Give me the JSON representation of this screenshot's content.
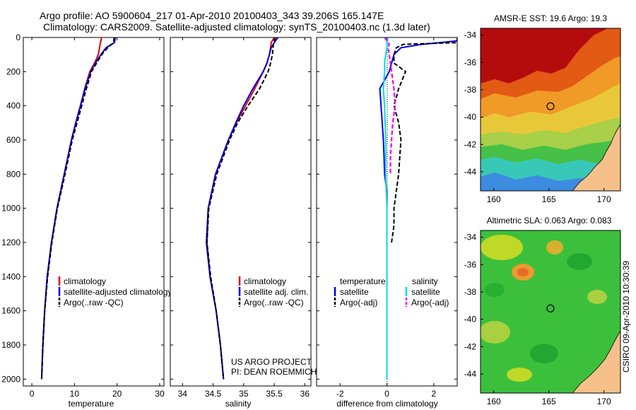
{
  "header": {
    "line1": "Argo profile: AO 5900604_217 01-Apr-2010 20100403_343 39.206S 165.147E",
    "line2": "Climatology: CARS2009. Satellite-adjusted climatology: synTS_20100403.nc (1.3d later)"
  },
  "colors": {
    "climatology": "#dd0000",
    "satellite": "#0000ee",
    "argo": "#000000",
    "sat_diff_sal": "#00dddd",
    "argo_diff_sal": "#ee00ee",
    "land": "#f5c08a"
  },
  "chart_data": [
    {
      "type": "line",
      "id": "temperature",
      "xlabel": "temperature",
      "ylabel": "",
      "xlim": [
        -2,
        31
      ],
      "ylim": [
        2040,
        0
      ],
      "xticks": [
        0,
        10,
        20,
        30
      ],
      "yticks": [
        0,
        200,
        400,
        600,
        800,
        1000,
        1200,
        1400,
        1600,
        1800,
        2000
      ],
      "y": [
        0,
        30,
        60,
        100,
        150,
        200,
        300,
        400,
        500,
        600,
        800,
        1000,
        1200,
        1400,
        1600,
        1800,
        2000
      ],
      "series": [
        {
          "name": "climatology",
          "x": [
            16.4,
            16.1,
            15.9,
            15.6,
            14.7,
            13.6,
            12.4,
            11.4,
            10.3,
            9.3,
            7.6,
            5.9,
            4.6,
            3.6,
            3.0,
            2.6,
            2.3
          ]
        },
        {
          "name": "satellite-adjusted climatology",
          "x": [
            19.6,
            19.4,
            17.4,
            16.2,
            14.9,
            13.8,
            12.5,
            11.4,
            10.3,
            9.3,
            7.6,
            5.9,
            4.6,
            3.6,
            3.0,
            2.6,
            2.3
          ]
        },
        {
          "name": "Argo(..raw -QC)",
          "x": [
            19.3,
            19.2,
            17.8,
            16.4,
            15.2,
            14.0,
            12.8,
            11.7,
            10.6,
            9.5,
            7.8,
            6.0,
            4.7,
            3.7,
            3.0,
            2.6,
            2.3
          ]
        }
      ],
      "legend": [
        "climatology",
        "satellite-adjusted climatology",
        "Argo(..raw -QC)"
      ]
    },
    {
      "type": "line",
      "id": "salinity",
      "xlabel": "salinity",
      "ylabel": "",
      "xlim": [
        33.8,
        36.1
      ],
      "ylim": [
        2040,
        0
      ],
      "xticks": [
        34,
        34.5,
        35,
        35.5,
        36
      ],
      "yticks": [
        0,
        200,
        400,
        600,
        800,
        1000,
        1200,
        1400,
        1600,
        1800,
        2000
      ],
      "y": [
        0,
        30,
        60,
        100,
        150,
        200,
        300,
        400,
        500,
        600,
        800,
        1000,
        1200,
        1400,
        1600,
        1800,
        2000
      ],
      "series": [
        {
          "name": "climatology",
          "x": [
            35.5,
            35.45,
            35.44,
            35.42,
            35.38,
            35.32,
            35.18,
            35.03,
            34.88,
            34.75,
            34.54,
            34.42,
            34.4,
            34.45,
            34.55,
            34.62,
            34.67
          ]
        },
        {
          "name": "satellite adj. clim.",
          "x": [
            35.56,
            35.5,
            35.45,
            35.42,
            35.38,
            35.32,
            35.15,
            35.0,
            34.87,
            34.75,
            34.54,
            34.42,
            34.39,
            34.45,
            34.55,
            34.62,
            34.67
          ]
        },
        {
          "name": "Argo(..raw -QC)",
          "x": [
            35.52,
            35.49,
            35.48,
            35.47,
            35.44,
            35.4,
            35.26,
            35.07,
            34.9,
            34.77,
            34.56,
            34.43,
            34.4,
            34.46,
            34.55,
            34.62,
            34.67
          ]
        }
      ],
      "legend": [
        "climatology",
        "satellite adj. clim.",
        "Argo(..raw -QC)"
      ],
      "annotation": [
        "US ARGO PROJECT",
        "PI: DEAN ROEMMICH"
      ]
    },
    {
      "type": "line",
      "id": "difference",
      "xlabel": "difference from climatology",
      "ylabel": "",
      "xlim": [
        -3,
        3
      ],
      "ylim": [
        2040,
        0
      ],
      "xticks": [
        -2,
        0,
        2
      ],
      "yticks": [
        0,
        200,
        400,
        600,
        800,
        1000,
        1200,
        1400,
        1600,
        1800,
        2000
      ],
      "legend_titles": [
        "temperature",
        "salinity"
      ],
      "series": [
        {
          "name": "satellite",
          "group": "temperature",
          "y": [
            0,
            20,
            40,
            60,
            100,
            150,
            200,
            300,
            400,
            500,
            600,
            700,
            800,
            900,
            1000,
            1200,
            1400,
            1600,
            1800,
            2000
          ],
          "x": [
            3.0,
            3.0,
            1.5,
            0.6,
            0.3,
            0.2,
            0.1,
            -0.3,
            -0.25,
            -0.2,
            -0.15,
            -0.12,
            -0.1,
            0.0,
            0.0,
            0.0,
            0.0,
            0.0,
            0.0,
            0.0
          ]
        },
        {
          "name": "Argo(-adj)",
          "group": "temperature",
          "y": [
            0,
            30,
            40,
            60,
            100,
            150,
            200,
            300,
            400,
            500,
            600,
            700,
            800,
            900,
            1000,
            1100,
            1200
          ],
          "x": [
            3.0,
            3.0,
            0.7,
            0.4,
            0.3,
            0.3,
            0.8,
            0.5,
            0.3,
            0.5,
            0.6,
            0.55,
            0.5,
            0.4,
            0.3,
            0.3,
            0.2
          ]
        },
        {
          "name": "satellite",
          "group": "salinity",
          "y": [
            0,
            30,
            60,
            100,
            150,
            200,
            300,
            400,
            600,
            800,
            1000,
            1200,
            1400,
            1600,
            1800,
            2000
          ],
          "x": [
            0.05,
            0.0,
            0.0,
            -0.05,
            -0.1,
            -0.1,
            -0.15,
            -0.1,
            -0.05,
            -0.05,
            0.0,
            0.0,
            0.0,
            0.0,
            0.0,
            0.0
          ]
        },
        {
          "name": "Argo(-adj)",
          "group": "salinity",
          "y": [
            0,
            20,
            40,
            60,
            100,
            200,
            300,
            400,
            500,
            600,
            700,
            800
          ],
          "x": [
            -0.1,
            0.0,
            0.1,
            0.05,
            0.1,
            0.2,
            0.3,
            0.35,
            0.25,
            0.2,
            0.15,
            0.15
          ]
        }
      ]
    },
    {
      "type": "heatmap",
      "id": "sst_map",
      "title": "AMSR-E SST: 19.6 Argo: 19.3",
      "xlim": [
        158.8,
        171.5
      ],
      "ylim": [
        -45.4,
        -33.5
      ],
      "xticks": [
        160,
        165,
        170
      ],
      "yticks": [
        -34,
        -36,
        -38,
        -40,
        -42,
        -44
      ],
      "marker": [
        165.147,
        -39.206
      ]
    },
    {
      "type": "heatmap",
      "id": "sla_map",
      "title": "Altimetric SLA: 0.063 Argo: 0.083",
      "xlim": [
        158.8,
        171.5
      ],
      "ylim": [
        -45.4,
        -33.5
      ],
      "xticks": [
        160,
        165,
        170
      ],
      "yticks": [
        -34,
        -36,
        -38,
        -40,
        -42,
        -44
      ],
      "marker": [
        165.147,
        -39.206
      ]
    }
  ],
  "footer": {
    "credit": "CSIRO 09-Apr-2010 10:30:39"
  }
}
